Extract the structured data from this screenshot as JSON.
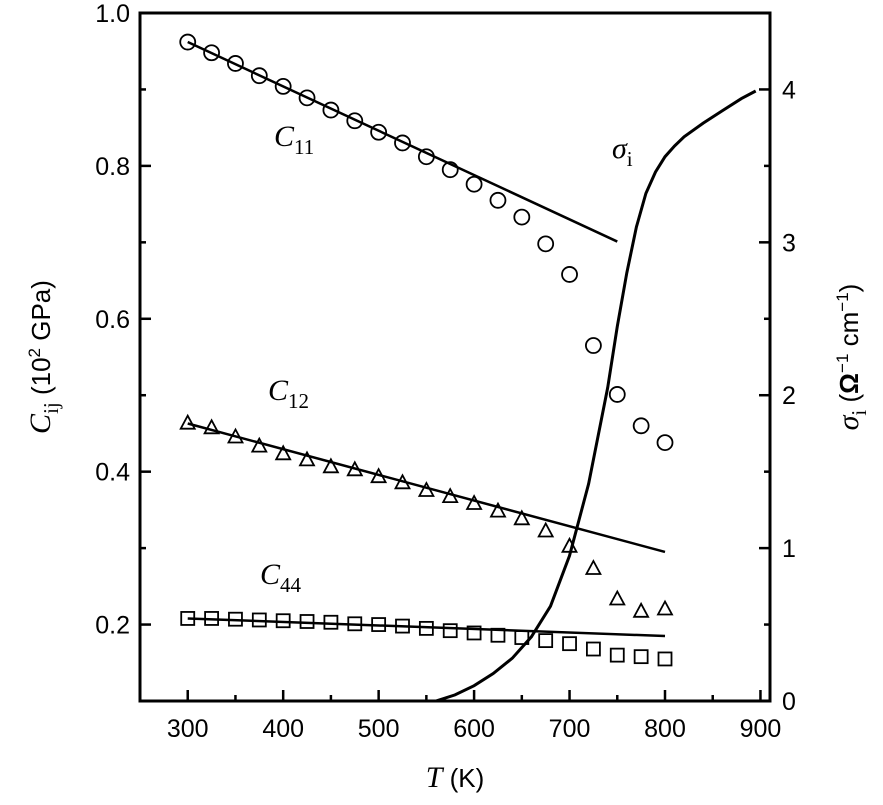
{
  "chart_data": {
    "type": "scatter",
    "title": "",
    "x_axis": {
      "label_symbol": "T",
      "label_unit": "(K)",
      "range": [
        250,
        910
      ],
      "ticks": [
        300,
        400,
        500,
        600,
        700,
        800,
        900
      ],
      "tick_labels": [
        "300",
        "400",
        "500",
        "600",
        "700",
        "800",
        "900"
      ]
    },
    "y_axis_left": {
      "label_symbol": "C",
      "label_sub": "ij",
      "label_unit_pre": "(10",
      "label_unit_sup": "2",
      "label_unit_post": " GPa)",
      "range": [
        0.1,
        1.0
      ],
      "ticks": [
        0.2,
        0.4,
        0.6,
        0.8,
        1.0
      ],
      "tick_labels": [
        "0.2",
        "0.4",
        "0.6",
        "0.8",
        "1.0"
      ]
    },
    "y_axis_right": {
      "label_symbol": "σ",
      "label_sub": "i",
      "label_unit_open": "(",
      "label_omega": "Ω",
      "label_exp1": "−1",
      "label_cm": " cm",
      "label_exp2": "−1",
      "label_unit_close": ")",
      "range": [
        0,
        4.5
      ],
      "ticks": [
        0,
        1,
        2,
        3,
        4
      ],
      "tick_labels": [
        "0",
        "1",
        "2",
        "3",
        "4"
      ]
    },
    "series": [
      {
        "name": "C11",
        "label_main": "C",
        "label_sub": "11",
        "marker": "circle",
        "axis": "left",
        "x": [
          300,
          325,
          350,
          375,
          400,
          425,
          450,
          475,
          500,
          525,
          550,
          575,
          600,
          625,
          650,
          675,
          700,
          725,
          750,
          775,
          800
        ],
        "y": [
          0.962,
          0.948,
          0.934,
          0.918,
          0.904,
          0.889,
          0.873,
          0.859,
          0.844,
          0.83,
          0.812,
          0.795,
          0.776,
          0.755,
          0.733,
          0.698,
          0.658,
          0.565,
          0.501,
          0.46,
          0.438
        ],
        "fit_line": {
          "x": [
            300,
            750
          ],
          "y": [
            0.962,
            0.701
          ]
        }
      },
      {
        "name": "C12",
        "label_main": "C",
        "label_sub": "12",
        "marker": "triangle",
        "axis": "left",
        "x": [
          300,
          325,
          350,
          375,
          400,
          425,
          450,
          475,
          500,
          525,
          550,
          575,
          600,
          625,
          650,
          675,
          700,
          725,
          750,
          775,
          800
        ],
        "y": [
          0.463,
          0.457,
          0.445,
          0.433,
          0.423,
          0.415,
          0.406,
          0.402,
          0.393,
          0.385,
          0.375,
          0.367,
          0.358,
          0.348,
          0.338,
          0.322,
          0.302,
          0.273,
          0.233,
          0.217,
          0.22
        ],
        "fit_line": {
          "x": [
            300,
            800
          ],
          "y": [
            0.463,
            0.295
          ]
        }
      },
      {
        "name": "C44",
        "label_main": "C",
        "label_sub": "44",
        "marker": "square",
        "axis": "left",
        "x": [
          300,
          325,
          350,
          375,
          400,
          425,
          450,
          475,
          500,
          525,
          550,
          575,
          600,
          625,
          650,
          675,
          700,
          725,
          750,
          775,
          800
        ],
        "y": [
          0.208,
          0.208,
          0.207,
          0.206,
          0.205,
          0.204,
          0.203,
          0.201,
          0.2,
          0.198,
          0.195,
          0.192,
          0.189,
          0.186,
          0.183,
          0.179,
          0.175,
          0.168,
          0.16,
          0.158,
          0.155
        ],
        "fit_line": {
          "x": [
            300,
            800
          ],
          "y": [
            0.208,
            0.185
          ]
        }
      },
      {
        "name": "σi",
        "label_main": "σ",
        "label_sub": "i",
        "type": "line",
        "axis": "right",
        "x": [
          560,
          580,
          600,
          620,
          640,
          660,
          680,
          700,
          720,
          740,
          750,
          760,
          770,
          780,
          790,
          800,
          810,
          820,
          840,
          860,
          880,
          895
        ],
        "y": [
          0.0,
          0.04,
          0.1,
          0.18,
          0.28,
          0.42,
          0.62,
          0.95,
          1.42,
          2.05,
          2.45,
          2.8,
          3.1,
          3.32,
          3.46,
          3.56,
          3.63,
          3.69,
          3.78,
          3.86,
          3.94,
          3.99
        ]
      }
    ]
  }
}
